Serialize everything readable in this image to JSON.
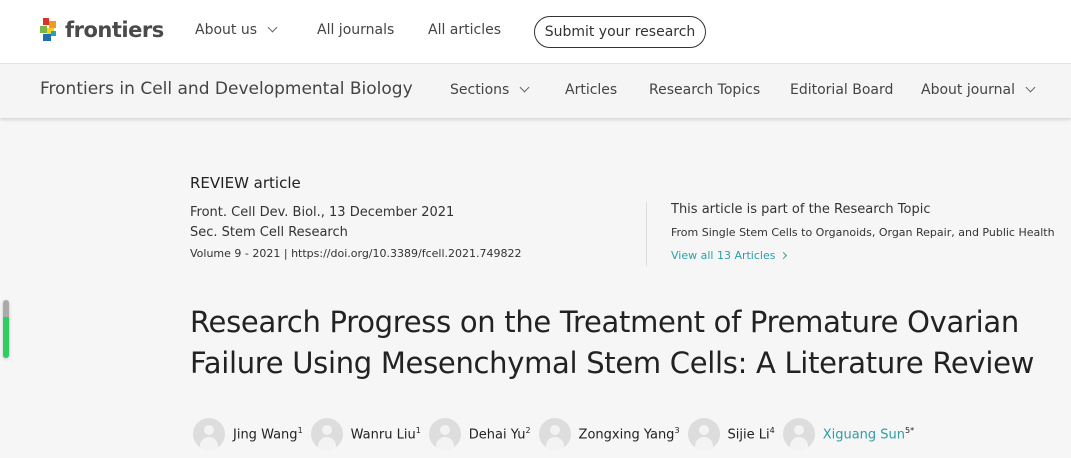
{
  "brand": {
    "name": "frontiers"
  },
  "topnav": {
    "items": [
      "About us",
      "All journals",
      "All articles"
    ],
    "submit": "Submit your research"
  },
  "journal": {
    "title": "Frontiers in Cell and Developmental Biology",
    "nav": [
      "Sections",
      "Articles",
      "Research Topics",
      "Editorial Board",
      "About journal"
    ]
  },
  "article": {
    "type": "REVIEW article",
    "citation": "Front. Cell Dev. Biol., 13 December 2021",
    "section": "Sec. Stem Cell Research",
    "volume": "Volume 9 - 2021 | https://doi.org/10.3389/fcell.2021.749822",
    "topic_label": "This article is part of the Research Topic",
    "topic": "From Single Stem Cells to Organoids, Organ Repair, and Public Health",
    "view_all": "View all 13 Articles",
    "title_line1": "Research Progress on the Treatment of Premature Ovarian",
    "title_line2": "Failure Using Mesenchymal Stem Cells: A Literature Review",
    "authors": [
      {
        "name": "Jing Wang",
        "sup": "1"
      },
      {
        "name": "Wanru Liu",
        "sup": "1"
      },
      {
        "name": "Dehai Yu",
        "sup": "2"
      },
      {
        "name": "Zongxing Yang",
        "sup": "3"
      },
      {
        "name": "Sijie Li",
        "sup": "4"
      },
      {
        "name": "Xiguang Sun",
        "sup": "5*"
      }
    ]
  },
  "reading_progress_percent": 70,
  "colors": {
    "accent": "#2a9fa8",
    "progress": "#2fcf5f"
  }
}
